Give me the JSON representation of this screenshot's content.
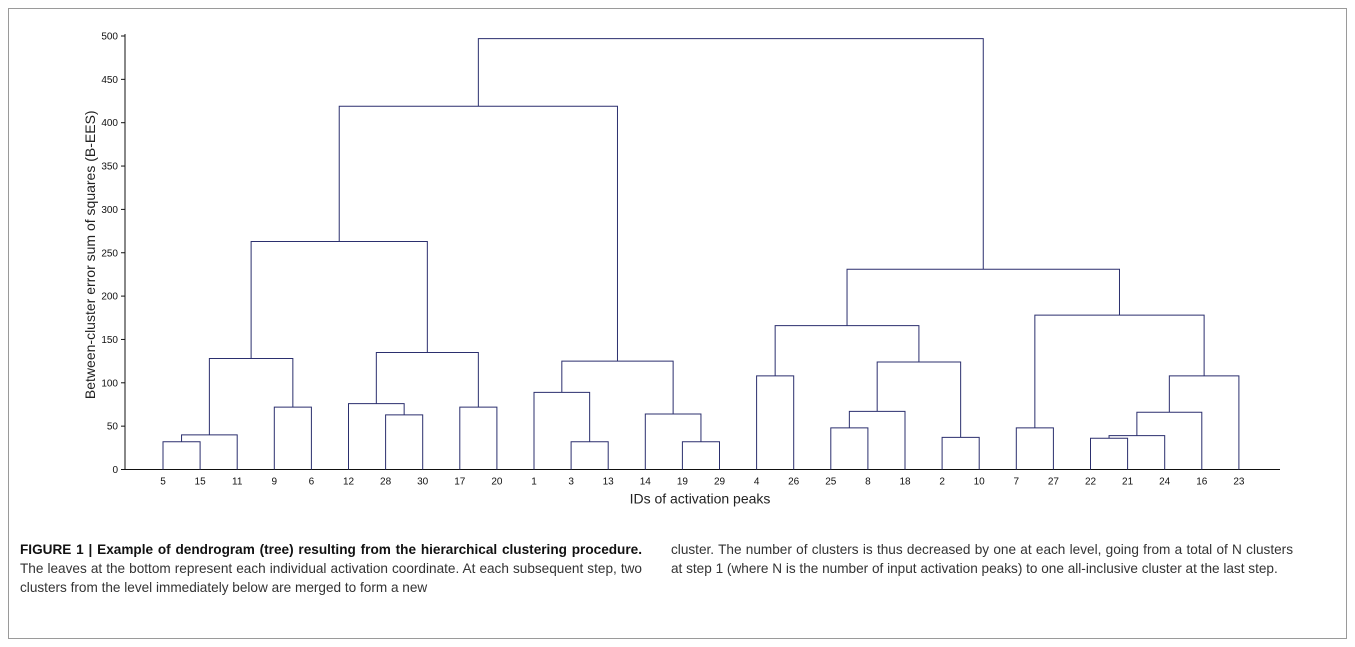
{
  "chart_data": {
    "type": "dendrogram",
    "title": "",
    "xlabel": "IDs of activation peaks",
    "ylabel": "Between-cluster error sum of squares (B-EES)",
    "ylim": [
      0,
      500
    ],
    "yticks": [
      0,
      50,
      100,
      150,
      200,
      250,
      300,
      350,
      400,
      450,
      500
    ],
    "leaves": [
      "5",
      "15",
      "11",
      "9",
      "6",
      "12",
      "28",
      "30",
      "17",
      "20",
      "1",
      "3",
      "13",
      "14",
      "19",
      "29",
      "4",
      "26",
      "25",
      "8",
      "18",
      "2",
      "10",
      "7",
      "27",
      "22",
      "21",
      "24",
      "16",
      "23"
    ],
    "merges": [
      {
        "a": "5",
        "b": "15",
        "height": 32
      },
      {
        "a": "5+15",
        "b": "11",
        "height": 40
      },
      {
        "a": "9",
        "b": "6",
        "height": 72
      },
      {
        "a": "5+15+11",
        "b": "9+6",
        "height": 128
      },
      {
        "a": "28",
        "b": "30",
        "height": 63
      },
      {
        "a": "12",
        "b": "28+30",
        "height": 76
      },
      {
        "a": "17",
        "b": "20",
        "height": 72
      },
      {
        "a": "12+28+30",
        "b": "17+20",
        "height": 135
      },
      {
        "a": "5..6",
        "b": "12..20",
        "height": 263
      },
      {
        "a": "3",
        "b": "13",
        "height": 32
      },
      {
        "a": "1",
        "b": "3+13",
        "height": 89
      },
      {
        "a": "19",
        "b": "29",
        "height": 32
      },
      {
        "a": "14",
        "b": "19+29",
        "height": 64
      },
      {
        "a": "1..13",
        "b": "14..29",
        "height": 125
      },
      {
        "a": "5..20",
        "b": "1..29",
        "height": 419
      },
      {
        "a": "4",
        "b": "26",
        "height": 108
      },
      {
        "a": "25",
        "b": "8",
        "height": 48
      },
      {
        "a": "25+8",
        "b": "18",
        "height": 67
      },
      {
        "a": "2",
        "b": "10",
        "height": 37
      },
      {
        "a": "25+8+18",
        "b": "2+10",
        "height": 124
      },
      {
        "a": "4+26",
        "b": "25..10",
        "height": 166
      },
      {
        "a": "7",
        "b": "27",
        "height": 48
      },
      {
        "a": "22",
        "b": "21",
        "height": 36
      },
      {
        "a": "22+21",
        "b": "24",
        "height": 39
      },
      {
        "a": "22+21+24",
        "b": "16",
        "height": 66
      },
      {
        "a": "22..16",
        "b": "23",
        "height": 108
      },
      {
        "a": "7+27",
        "b": "22..23",
        "height": 178
      },
      {
        "a": "4..10",
        "b": "7..23",
        "height": 231
      },
      {
        "a": "5..29",
        "b": "4..23",
        "height": 497
      }
    ]
  },
  "caption": {
    "figure_label": "FIGURE 1 | Example of dendrogram (tree) resulting from the hierarchical clustering procedure.",
    "left_text": "The leaves at the bottom represent each individual activation coordinate. At each subsequent step, two clusters from the level immediately below are merged to form a new",
    "right_text": "cluster. The number of clusters is thus decreased by one at each level, going from a total of N clusters at step 1 (where N is the number of input activation peaks) to one all-inclusive cluster at the last step."
  },
  "colors": {
    "tree": "#2b2f6e",
    "axis": "#111111"
  }
}
